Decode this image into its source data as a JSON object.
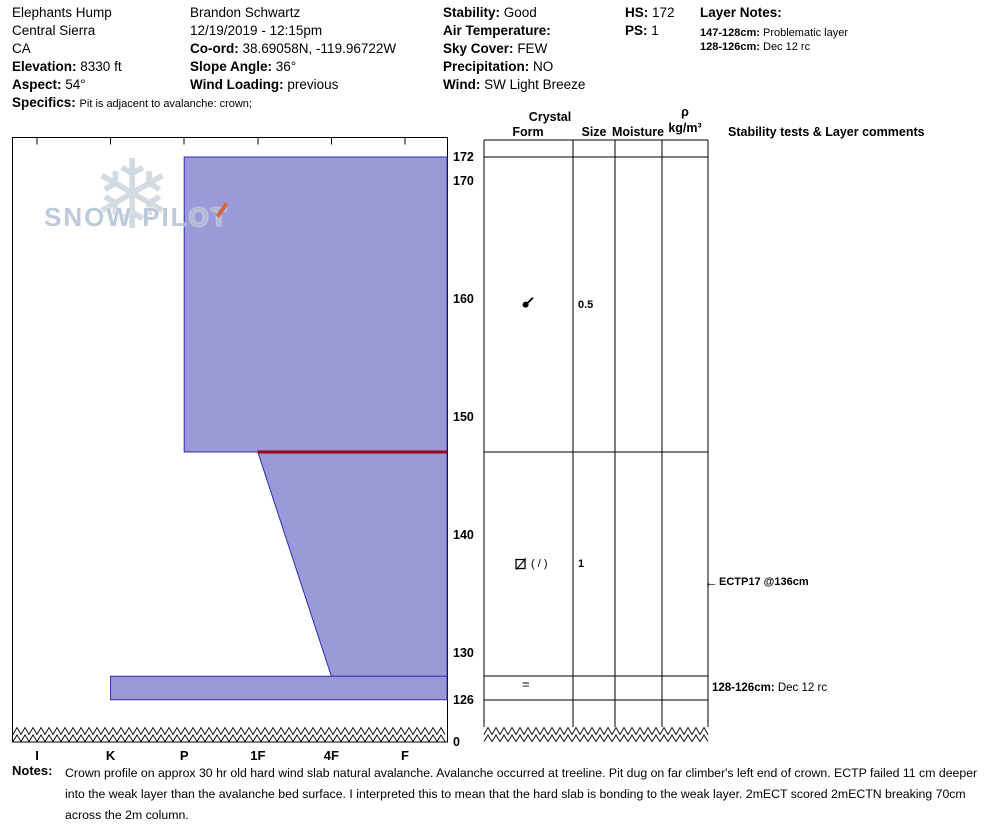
{
  "site": {
    "name": "Elephants Hump",
    "region": "Central Sierra",
    "state": "CA",
    "elevation_label": "Elevation:",
    "elevation": "8330 ft",
    "aspect_label": "Aspect:",
    "aspect": "54°",
    "specifics_label": "Specifics:",
    "specifics": "Pit is adjacent to avalanche: crown;"
  },
  "observation": {
    "observer": "Brandon Schwartz",
    "datetime": "12/19/2019 - 12:15pm",
    "coord_label": "Co-ord:",
    "coord": "38.69058N, -119.96722W",
    "slope_angle_label": "Slope Angle:",
    "slope_angle": "36°",
    "wind_loading_label": "Wind Loading:",
    "wind_loading": "previous"
  },
  "conditions": {
    "stability_label": "Stability:",
    "stability": "Good",
    "air_temperature_label": "Air Temperature:",
    "air_temperature": "",
    "sky_cover_label": "Sky Cover:",
    "sky_cover": "FEW",
    "precipitation_label": "Precipitation:",
    "precipitation": "NO",
    "wind_label": "Wind:",
    "wind": "SW Light Breeze"
  },
  "summary": {
    "hs_label": "HS:",
    "hs": "172",
    "ps_label": "PS:",
    "ps": "1"
  },
  "layer_notes": {
    "title": "Layer Notes:",
    "items": [
      {
        "range": "147-128cm:",
        "text": "Problematic layer"
      },
      {
        "range": "128-126cm:",
        "text": "Dec 12 rc"
      }
    ]
  },
  "branding": {
    "name": "SNOW PILOT"
  },
  "columns": {
    "crystal": "Crystal",
    "form": "Form",
    "size": "Size",
    "moisture": "Moisture",
    "rho": "ρ",
    "rho_unit": "kg/m³",
    "stability_header": "Stability tests & Layer comments"
  },
  "chart_data": {
    "type": "snow-profile-bar",
    "title": "Snow pit hardness profile",
    "depth_axis": {
      "unit": "cm",
      "ticks": [
        172,
        170,
        160,
        150,
        140,
        130,
        126
      ],
      "ground": "0",
      "total_depth_cm": 172
    },
    "hardness_axis": {
      "categories": [
        "I",
        "K",
        "P",
        "1F",
        "4F",
        "F"
      ]
    },
    "layers": [
      {
        "top_cm": 172,
        "bottom_cm": 147,
        "hardness_top": "P",
        "hardness_bottom": "P",
        "form": "decomposing fragments",
        "size_mm": "0.5",
        "moisture": "",
        "density": ""
      },
      {
        "top_cm": 147,
        "bottom_cm": 128,
        "hardness_top": "1F",
        "hardness_bottom": "4F",
        "form": "facets",
        "form_secondary": "( / )",
        "size_mm": "1",
        "moisture": "",
        "density": ""
      },
      {
        "top_cm": 128,
        "bottom_cm": 126,
        "hardness_top": "K",
        "hardness_bottom": "K",
        "form": "=",
        "size_mm": "",
        "moisture": "",
        "density": ""
      }
    ],
    "problem_layer": {
      "depth_cm": 147,
      "color": "#990011"
    },
    "tests": [
      {
        "arrow": "←",
        "label": "ECTP17 @136cm",
        "depth_cm": 136
      }
    ],
    "layer_comments": [
      {
        "range": "128-126cm:",
        "text": "Dec 12 rc",
        "depth_cm": 127
      }
    ],
    "style": {
      "layer_fill": "#9b99d8",
      "layer_stroke": "#2e2eb4"
    }
  },
  "notes": {
    "label": "Notes:",
    "text": "Crown profile on approx 30 hr old hard wind slab natural avalanche. Avalanche occurred at treeline. Pit dug on far climber's left end of crown. ECTP failed 11 cm deeper into the weak layer than the avalanche bed surface. I interpreted this to mean that the hard slab is bonding to the weak layer. 2mECT scored 2mECTN breaking 70cm across the 2m column."
  }
}
